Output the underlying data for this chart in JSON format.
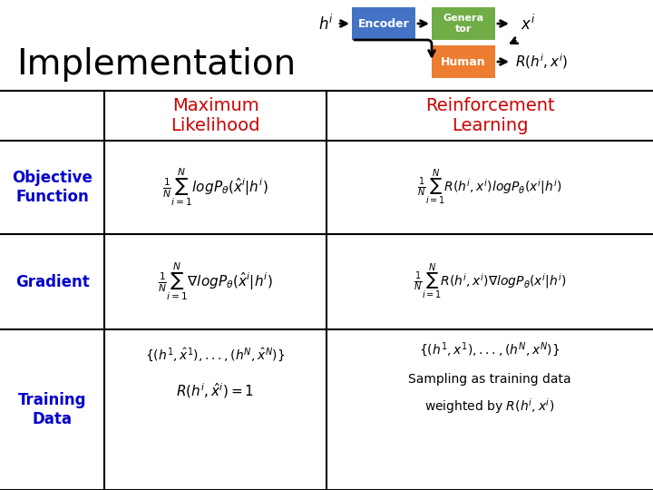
{
  "title": "Implementation",
  "title_color": "#000000",
  "title_fontsize": 28,
  "col_header_ml": "Maximum\nLikelihood",
  "col_header_rl": "Reinforcement\nLearning",
  "col_header_color": "#cc0000",
  "col_header_fontsize": 14,
  "row_labels": [
    "Objective\nFunction",
    "Gradient",
    "Training\nData"
  ],
  "row_label_color": "#0000cc",
  "row_label_fontsize": 12,
  "encoder_color": "#4472c4",
  "generator_color": "#70ad47",
  "human_color": "#ed7d31",
  "bg_color": "#ffffff",
  "grid_color": "#000000",
  "formula_color": "#000000",
  "ml_obj_formula": "$\\frac{1}{N}\\sum_{i=1}^{N}logP_{\\theta}(\\hat{x}^i|h^i)$",
  "rl_obj_formula": "$\\frac{1}{N}\\sum_{i=1}^{N}R(h^i,x^i)logP_{\\theta}(x^i|h^i)$",
  "ml_grad_formula": "$\\frac{1}{N}\\sum_{i=1}^{N}\\nabla logP_{\\theta}(\\hat{x}^i|h^i)$",
  "rl_grad_formula": "$\\frac{1}{N}\\sum_{i=1}^{N}R(h^i,x^i)\\nabla logP_{\\theta}(x^i|h^i)$",
  "ml_data_line1": "$\\{(h^1,\\hat{x}^1),...,(h^N,\\hat{x}^N)\\}$",
  "ml_data_line2": "$R(h^i,\\hat{x}^i)=1$",
  "rl_data_line1": "$\\{(h^1,x^1),...,(h^N,x^N)\\}$",
  "rl_data_line2": "Sampling as training data",
  "rl_data_line3": "weighted by $R(h^i,x^i)$"
}
